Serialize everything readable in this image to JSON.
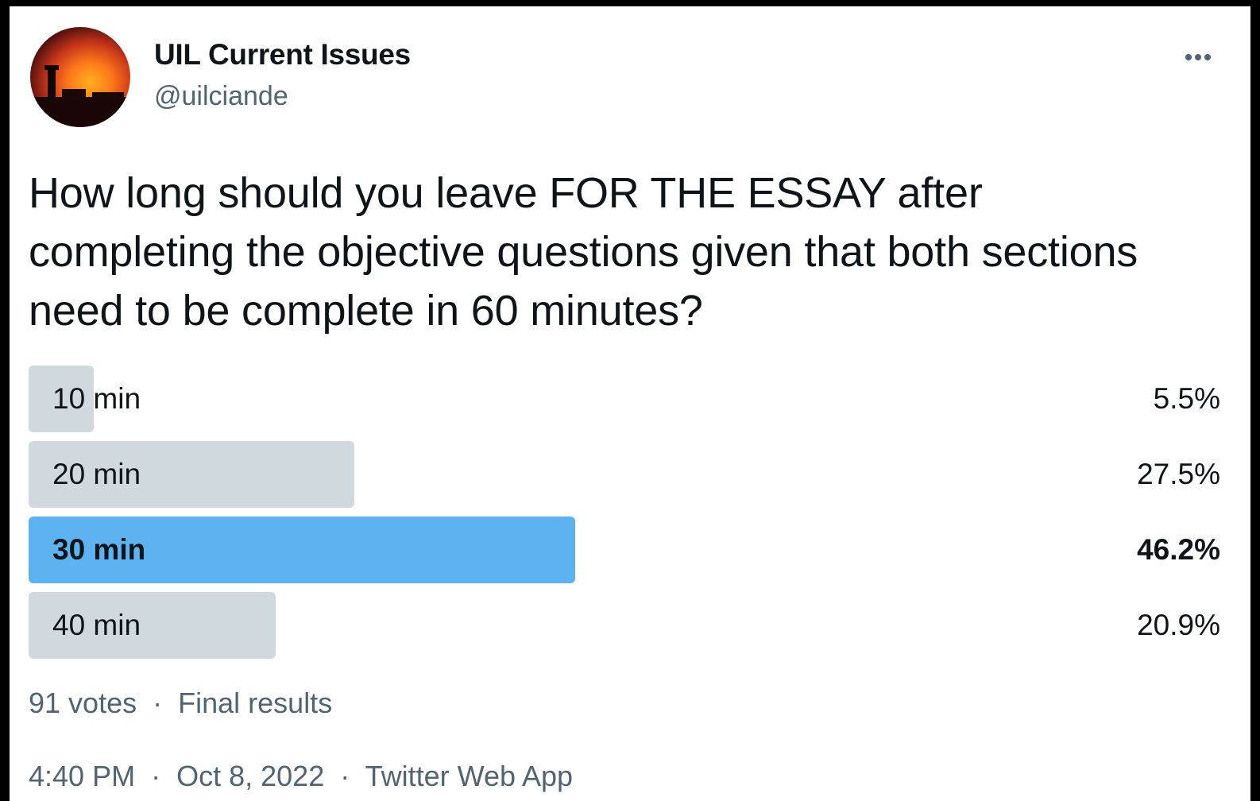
{
  "author": {
    "display_name": "UIL Current Issues",
    "handle": "@uilciande"
  },
  "tweet": {
    "text": "How long should you leave FOR THE ESSAY after completing the objective questions given that both sections need to be complete in 60 minutes?"
  },
  "poll": {
    "options": [
      {
        "label": "10 min",
        "percent_text": "5.5%",
        "percent": 5.5,
        "winner": false
      },
      {
        "label": "20 min",
        "percent_text": "27.5%",
        "percent": 27.5,
        "winner": false
      },
      {
        "label": "30 min",
        "percent_text": "46.2%",
        "percent": 46.2,
        "winner": true
      },
      {
        "label": "40 min",
        "percent_text": "20.9%",
        "percent": 20.9,
        "winner": false
      }
    ],
    "votes": "91 votes",
    "separator": "·",
    "status": "Final results"
  },
  "meta": {
    "time": "4:40 PM",
    "date": "Oct 8, 2022",
    "source": "Twitter Web App",
    "separator": "·"
  },
  "colors": {
    "winner_bar": "#5cb3f0",
    "other_bar": "#cfd9de",
    "secondary_text": "#536471"
  },
  "icons": {
    "more": "more-horizontal-icon"
  }
}
